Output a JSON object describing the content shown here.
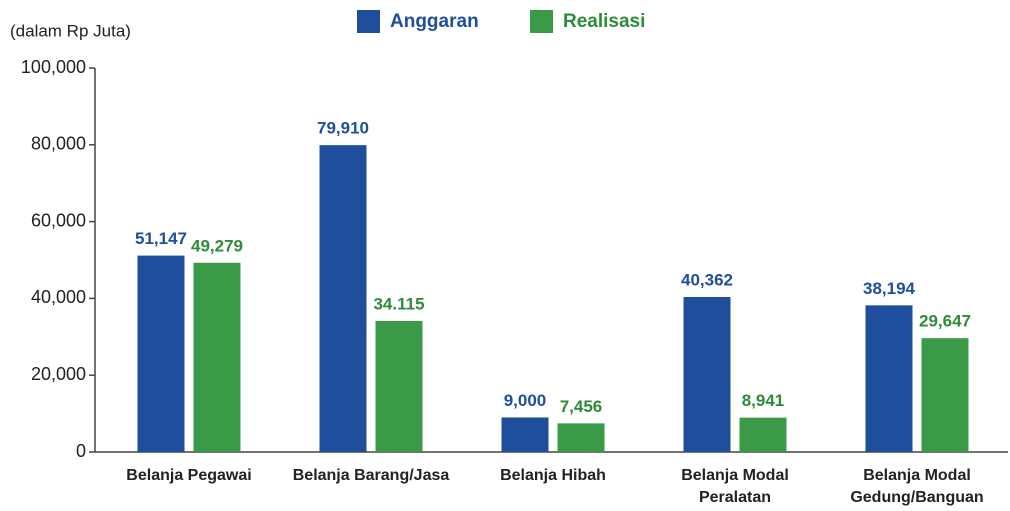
{
  "chart_data": {
    "type": "bar",
    "unit_label": "(dalam Rp Juta)",
    "categories": [
      "Belanja Pegawai",
      "Belanja Barang/Jasa",
      "Belanja Hibah",
      "Belanja Modal\nPeralatan",
      "Belanja Modal\nGedung/Banguan"
    ],
    "series": [
      {
        "name": "Anggaran",
        "color": "#1f4e9c",
        "label_color": "#1f4e9c",
        "values": [
          51147,
          79910,
          9000,
          40362,
          38194
        ],
        "value_labels": [
          "51,147",
          "79,910",
          "9,000",
          "40,362",
          "38,194"
        ]
      },
      {
        "name": "Realisasi",
        "color": "#3a9a48",
        "label_color": "#2e8b3a",
        "values": [
          49279,
          34115,
          7456,
          8941,
          29647
        ],
        "value_labels": [
          "49,279",
          "34.115",
          "7,456",
          "8,941",
          "29,647"
        ]
      }
    ],
    "ylim": [
      0,
      100000
    ],
    "yticks": [
      0,
      {
        "value": 20000,
        "label": "20,000"
      },
      {
        "value": 40000,
        "label": "40,000"
      },
      {
        "value": 60000,
        "label": "60,000"
      },
      {
        "value": 80000,
        "label": "80,000"
      },
      {
        "value": 100000,
        "label": "100,000"
      }
    ],
    "grid": false,
    "legend": "top"
  }
}
